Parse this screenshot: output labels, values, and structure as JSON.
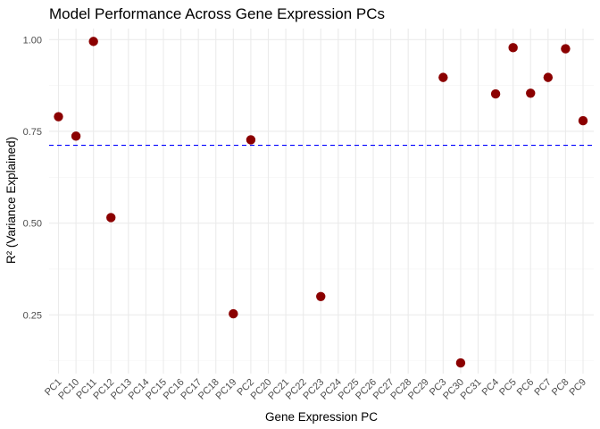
{
  "chart_data": {
    "type": "scatter",
    "title": "Model Performance Across Gene Expression PCs",
    "xlabel": "Gene Expression PC",
    "ylabel": "R² (Variance Explained)",
    "categories": [
      "PC1",
      "PC10",
      "PC11",
      "PC12",
      "PC13",
      "PC14",
      "PC15",
      "PC16",
      "PC17",
      "PC18",
      "PC19",
      "PC2",
      "PC20",
      "PC21",
      "PC22",
      "PC23",
      "PC24",
      "PC25",
      "PC26",
      "PC27",
      "PC28",
      "PC29",
      "PC3",
      "PC30",
      "PC31",
      "PC4",
      "PC5",
      "PC6",
      "PC7",
      "PC8",
      "PC9"
    ],
    "points": [
      {
        "x": "PC1",
        "y": 0.79
      },
      {
        "x": "PC10",
        "y": 0.737
      },
      {
        "x": "PC11",
        "y": 0.995
      },
      {
        "x": "PC12",
        "y": 0.515
      },
      {
        "x": "PC19",
        "y": 0.253
      },
      {
        "x": "PC2",
        "y": 0.727
      },
      {
        "x": "PC23",
        "y": 0.3
      },
      {
        "x": "PC3",
        "y": 0.897
      },
      {
        "x": "PC30",
        "y": 0.119
      },
      {
        "x": "PC4",
        "y": 0.852
      },
      {
        "x": "PC5",
        "y": 0.978
      },
      {
        "x": "PC6",
        "y": 0.854
      },
      {
        "x": "PC7",
        "y": 0.897
      },
      {
        "x": "PC8",
        "y": 0.975
      },
      {
        "x": "PC9",
        "y": 0.779
      }
    ],
    "reference_line": {
      "y": 0.712,
      "style": "dashed",
      "color": "#0000ff"
    },
    "point_color": "#8b0000",
    "ylim": [
      0.09,
      1.03
    ],
    "yticks": [
      0.25,
      0.5,
      0.75,
      1.0
    ],
    "ytick_labels": [
      "0.25",
      "0.50",
      "0.75",
      "1.00"
    ],
    "grid": true
  }
}
